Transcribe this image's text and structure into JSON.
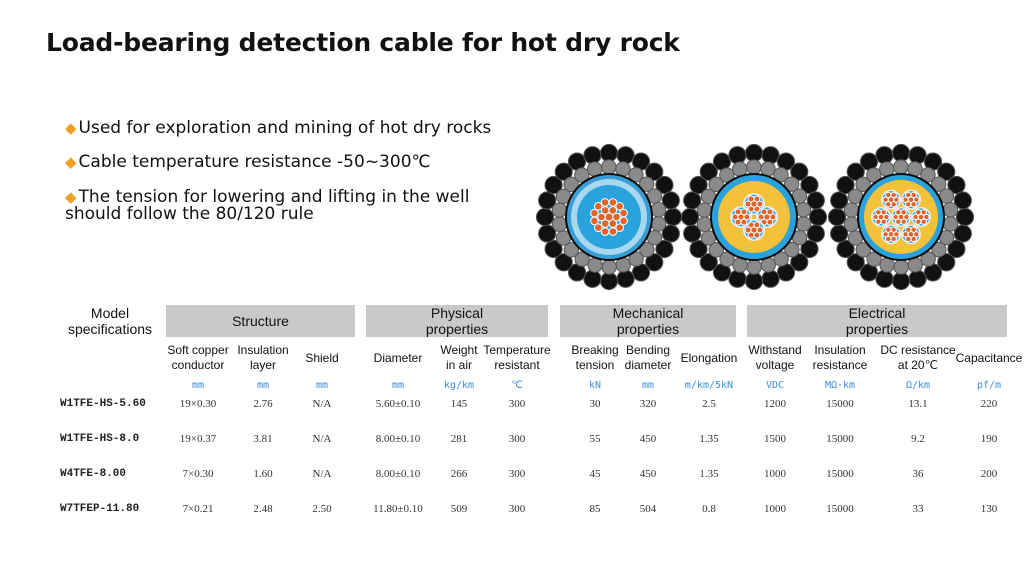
{
  "title": "Load-bearing detection cable for hot dry rock",
  "bullets": [
    "Used for exploration and mining of hot dry rocks",
    "Cable temperature resistance -50~300℃",
    "The tension for lowering and lifting in the well should follow the 80/120 rule"
  ],
  "table": {
    "model_header": "Model specifications",
    "groups": [
      "Structure",
      "Physical properties",
      "Mechanical properties",
      "Electrical properties"
    ],
    "columns": [
      {
        "label": "Soft copper conductor",
        "unit": "mm"
      },
      {
        "label": "Insulation layer",
        "unit": "mm"
      },
      {
        "label": "Shield",
        "unit": "mm"
      },
      {
        "label": "Diameter",
        "unit": "mm"
      },
      {
        "label": "Weight in air",
        "unit": "kg/km"
      },
      {
        "label": "Temperature resistant",
        "unit": "℃"
      },
      {
        "label": "Breaking tension",
        "unit": "kN"
      },
      {
        "label": "Bending diameter",
        "unit": "mm"
      },
      {
        "label": "Elongation",
        "unit": "m/km/5kN"
      },
      {
        "label": "Withstand voltage",
        "unit": "VDC"
      },
      {
        "label": "Insulation resistance",
        "unit": "MΩ·km"
      },
      {
        "label": "DC resistance at 20℃",
        "unit": "Ω/km"
      },
      {
        "label": "Capacitance",
        "unit": "pf/m"
      }
    ],
    "rows": [
      {
        "model": "W1TFE-HS-5.60",
        "values": [
          "19×0.30",
          "2.76",
          "N/A",
          "5.60±0.10",
          "145",
          "300",
          "30",
          "320",
          "2.5",
          "1200",
          "15000",
          "13.1",
          "220"
        ]
      },
      {
        "model": "W1TFE-HS-8.0",
        "values": [
          "19×0.37",
          "3.81",
          "N/A",
          "8.00±0.10",
          "281",
          "300",
          "55",
          "450",
          "1.35",
          "1500",
          "15000",
          "9.2",
          "190"
        ]
      },
      {
        "model": "W4TFE-8.00",
        "values": [
          "7×0.30",
          "1.60",
          "N/A",
          "8.00±0.10",
          "266",
          "300",
          "45",
          "450",
          "1.35",
          "1000",
          "15000",
          "36",
          "200"
        ]
      },
      {
        "model": "W7TFEP-11.80",
        "values": [
          "7×0.21",
          "2.48",
          "2.50",
          "11.80±0.10",
          "509",
          "300",
          "85",
          "504",
          "0.8",
          "1000",
          "15000",
          "33",
          "130"
        ]
      }
    ]
  },
  "colors": {
    "accent_diamond": "#f0a020",
    "unit_blue": "#3a8fe0",
    "header_gray": "#c9c9c9",
    "copper": "#e0642c",
    "insulation_blue": "#2aa3dd",
    "filler_yellow": "#f3c13a",
    "armor_black": "#111111",
    "armor_gray": "#8a8a8a"
  }
}
